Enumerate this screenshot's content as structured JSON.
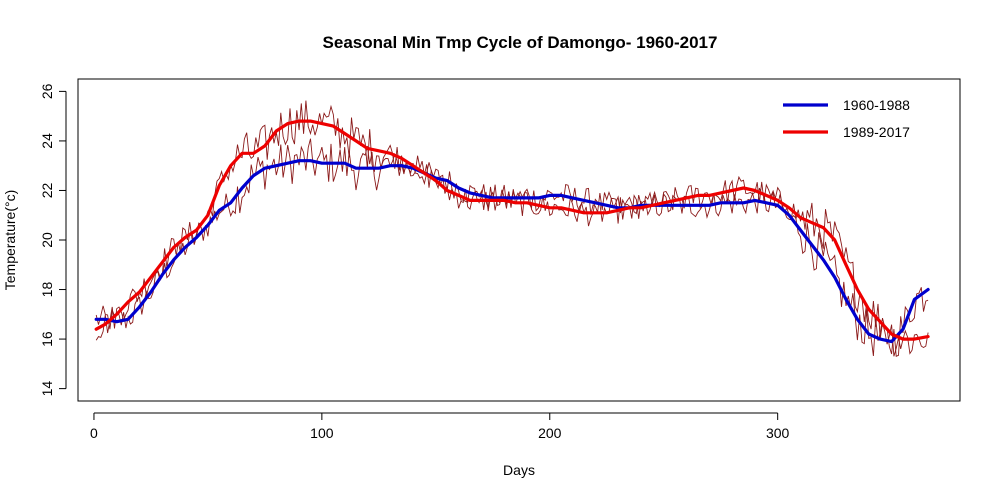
{
  "chart_data": {
    "type": "line",
    "title": "Seasonal Min Tmp Cycle of Damongo- 1960-2017",
    "xlabel": "Days",
    "ylabel": "Temperature(°c)",
    "xlim": [
      -7,
      380
    ],
    "ylim": [
      13.5,
      26.5
    ],
    "x_ticks": [
      0,
      100,
      200,
      300
    ],
    "y_ticks": [
      14,
      16,
      18,
      20,
      22,
      24,
      26
    ],
    "grid": false,
    "legend_position": "top-right",
    "colors": {
      "daily": "#8b1a1a",
      "series_1960": "#0000cd",
      "series_1989": "#ee0000"
    },
    "series": [
      {
        "name": "1960-1988",
        "color": "#0000cd",
        "x": [
          1,
          5,
          10,
          15,
          20,
          25,
          30,
          35,
          40,
          45,
          50,
          55,
          60,
          65,
          70,
          75,
          80,
          85,
          90,
          95,
          100,
          105,
          110,
          115,
          120,
          125,
          130,
          135,
          140,
          145,
          150,
          155,
          160,
          165,
          170,
          175,
          180,
          185,
          190,
          195,
          200,
          205,
          210,
          215,
          220,
          225,
          230,
          235,
          240,
          245,
          250,
          255,
          260,
          265,
          270,
          275,
          280,
          285,
          290,
          295,
          300,
          305,
          310,
          315,
          320,
          325,
          330,
          335,
          340,
          345,
          350,
          355,
          360,
          366
        ],
        "y": [
          16.8,
          16.8,
          16.7,
          16.8,
          17.3,
          17.9,
          18.6,
          19.2,
          19.7,
          20.1,
          20.6,
          21.2,
          21.5,
          22.1,
          22.6,
          22.9,
          23.0,
          23.1,
          23.2,
          23.2,
          23.1,
          23.1,
          23.1,
          22.9,
          22.9,
          22.9,
          23.0,
          23.0,
          22.9,
          22.7,
          22.5,
          22.4,
          22.1,
          21.9,
          21.8,
          21.7,
          21.7,
          21.7,
          21.7,
          21.7,
          21.8,
          21.8,
          21.7,
          21.6,
          21.5,
          21.4,
          21.3,
          21.3,
          21.4,
          21.4,
          21.4,
          21.4,
          21.4,
          21.4,
          21.4,
          21.5,
          21.5,
          21.5,
          21.6,
          21.5,
          21.4,
          21.0,
          20.4,
          19.8,
          19.2,
          18.5,
          17.6,
          16.8,
          16.2,
          16.0,
          15.9,
          16.4,
          17.6,
          18.0
        ]
      },
      {
        "name": "1989-2017",
        "color": "#ee0000",
        "x": [
          1,
          5,
          10,
          15,
          20,
          25,
          30,
          35,
          40,
          45,
          50,
          55,
          60,
          65,
          70,
          75,
          80,
          85,
          90,
          95,
          100,
          105,
          110,
          115,
          120,
          125,
          130,
          135,
          140,
          145,
          150,
          155,
          160,
          165,
          170,
          175,
          180,
          185,
          190,
          195,
          200,
          205,
          210,
          215,
          220,
          225,
          230,
          235,
          240,
          245,
          250,
          255,
          260,
          265,
          270,
          275,
          280,
          285,
          290,
          295,
          300,
          305,
          310,
          315,
          320,
          325,
          330,
          335,
          340,
          345,
          350,
          355,
          360,
          366
        ],
        "y": [
          16.4,
          16.6,
          17.0,
          17.5,
          17.9,
          18.5,
          19.1,
          19.7,
          20.1,
          20.4,
          21.0,
          22.2,
          23.0,
          23.5,
          23.5,
          23.8,
          24.4,
          24.7,
          24.8,
          24.8,
          24.7,
          24.6,
          24.3,
          24.0,
          23.7,
          23.6,
          23.5,
          23.3,
          23.0,
          22.7,
          22.4,
          22.0,
          21.8,
          21.6,
          21.6,
          21.6,
          21.6,
          21.5,
          21.5,
          21.4,
          21.3,
          21.3,
          21.2,
          21.1,
          21.1,
          21.1,
          21.2,
          21.3,
          21.3,
          21.4,
          21.5,
          21.6,
          21.7,
          21.8,
          21.8,
          21.9,
          22.0,
          22.1,
          22.0,
          21.8,
          21.6,
          21.3,
          20.9,
          20.7,
          20.5,
          20.0,
          19.0,
          18.0,
          17.2,
          16.7,
          16.2,
          16.0,
          16.0,
          16.1
        ]
      }
    ],
    "raw_daily_lines": 2
  }
}
